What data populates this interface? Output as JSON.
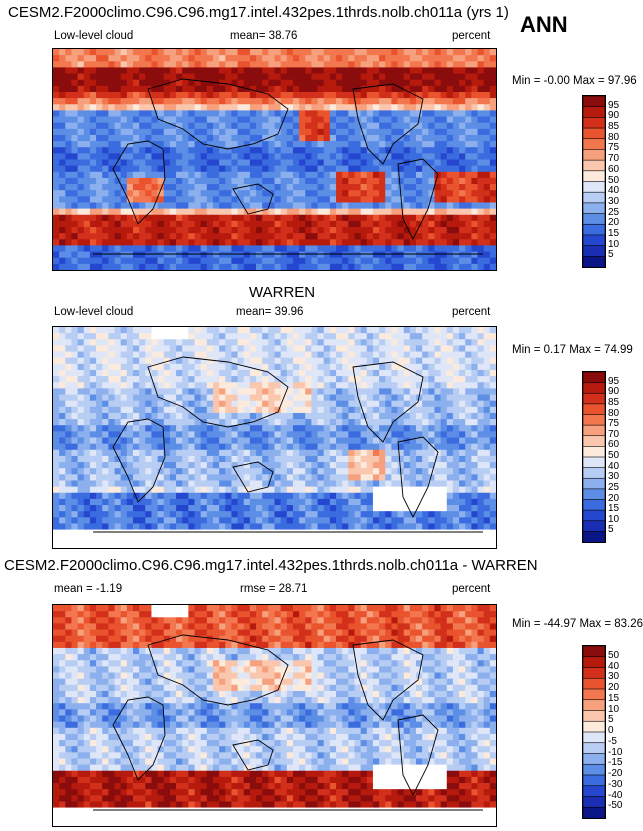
{
  "annual_tag": "ANN",
  "chart_data": [
    {
      "type": "heatmap",
      "title": "CESM2.F2000climo.C96.C96.mg17.intel.432pes.1thrds.nolb.ch011a (yrs 1)",
      "left_label": "Low-level cloud",
      "stat_text": "mean=  38.76",
      "units": "percent",
      "minmax_text": "Min =  -0.00 Max =  97.96",
      "colorbar": {
        "levels": [
          "95",
          "90",
          "85",
          "80",
          "75",
          "70",
          "60",
          "50",
          "40",
          "30",
          "25",
          "20",
          "15",
          "10",
          "5"
        ],
        "colors": [
          "#8b0c0c",
          "#b61a0d",
          "#d2301a",
          "#e9532e",
          "#f3774e",
          "#f7a07d",
          "#fac7ae",
          "#fcebdd",
          "#dee6f7",
          "#b7cdf3",
          "#8cb0ee",
          "#5c8ee6",
          "#3a6ce0",
          "#2547cf",
          "#1a2eb3",
          "#0a1686"
        ]
      }
    },
    {
      "type": "heatmap",
      "title": "WARREN",
      "left_label": "Low-level cloud",
      "stat_text": "mean=  39.96",
      "units": "percent",
      "minmax_text": "Min =   0.17 Max =  74.99",
      "colorbar": {
        "levels": [
          "95",
          "90",
          "85",
          "80",
          "75",
          "70",
          "60",
          "50",
          "40",
          "30",
          "25",
          "20",
          "15",
          "10",
          "5"
        ],
        "colors": [
          "#8b0c0c",
          "#b61a0d",
          "#d2301a",
          "#e9532e",
          "#f3774e",
          "#f7a07d",
          "#fac7ae",
          "#fcebdd",
          "#dee6f7",
          "#b7cdf3",
          "#8cb0ee",
          "#5c8ee6",
          "#3a6ce0",
          "#2547cf",
          "#1a2eb3",
          "#0a1686"
        ]
      }
    },
    {
      "type": "heatmap",
      "title": "CESM2.F2000climo.C96.C96.mg17.intel.432pes.1thrds.nolb.ch011a - WARREN",
      "left_label": "mean =  -1.19",
      "stat_text": "rmse =  28.71",
      "units": "percent",
      "minmax_text": "Min = -44.97 Max =  83.26",
      "colorbar": {
        "levels": [
          "50",
          "40",
          "30",
          "20",
          "15",
          "10",
          "5",
          "0",
          "-5",
          "-10",
          "-15",
          "-20",
          "-30",
          "-40",
          "-50"
        ],
        "colors": [
          "#8b0c0c",
          "#b61a0d",
          "#d2301a",
          "#e9532e",
          "#f3774e",
          "#f7a07d",
          "#fac7ae",
          "#fcebdd",
          "#dee6f7",
          "#b7cdf3",
          "#8cb0ee",
          "#5c8ee6",
          "#3a6ce0",
          "#2547cf",
          "#1a2eb3",
          "#0a1686"
        ]
      }
    }
  ]
}
